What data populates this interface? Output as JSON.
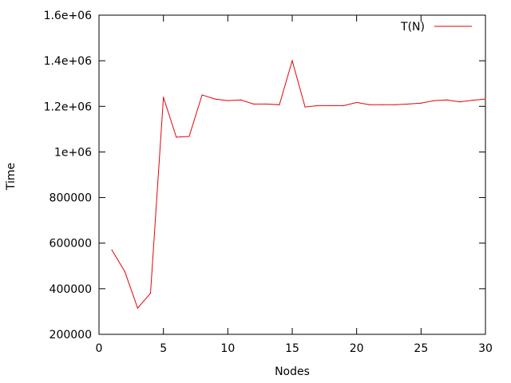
{
  "chart_data": {
    "type": "line",
    "xlabel": "Nodes",
    "ylabel": "Time",
    "xlim": [
      0,
      30
    ],
    "ylim": [
      200000,
      1600000
    ],
    "grid": false,
    "legend_position": "top-right",
    "x_ticks": [
      {
        "value": 0,
        "label": "0"
      },
      {
        "value": 5,
        "label": "5"
      },
      {
        "value": 10,
        "label": "10"
      },
      {
        "value": 15,
        "label": "15"
      },
      {
        "value": 20,
        "label": "20"
      },
      {
        "value": 25,
        "label": "25"
      },
      {
        "value": 30,
        "label": "30"
      }
    ],
    "y_ticks": [
      {
        "value": 200000,
        "label": "200000"
      },
      {
        "value": 400000,
        "label": "400000"
      },
      {
        "value": 600000,
        "label": "600000"
      },
      {
        "value": 800000,
        "label": "800000"
      },
      {
        "value": 1000000,
        "label": "1e+06"
      },
      {
        "value": 1200000,
        "label": "1.2e+06"
      },
      {
        "value": 1400000,
        "label": "1.4e+06"
      },
      {
        "value": 1600000,
        "label": "1.6e+06"
      }
    ],
    "series": [
      {
        "name": "T(N)",
        "color": "#e8000b",
        "x": [
          1,
          2,
          3,
          4,
          5,
          6,
          7,
          8,
          9,
          10,
          11,
          12,
          13,
          14,
          15,
          16,
          17,
          18,
          19,
          20,
          21,
          22,
          23,
          24,
          25,
          26,
          27,
          28,
          29,
          30
        ],
        "y": [
          570000,
          475000,
          315000,
          380000,
          1240000,
          1065000,
          1068000,
          1250000,
          1232000,
          1225000,
          1228000,
          1210000,
          1210000,
          1207000,
          1400000,
          1197000,
          1203000,
          1203000,
          1203000,
          1217000,
          1207000,
          1207000,
          1207000,
          1210000,
          1214000,
          1225000,
          1228000,
          1220000,
          1227000,
          1232000
        ]
      }
    ]
  }
}
